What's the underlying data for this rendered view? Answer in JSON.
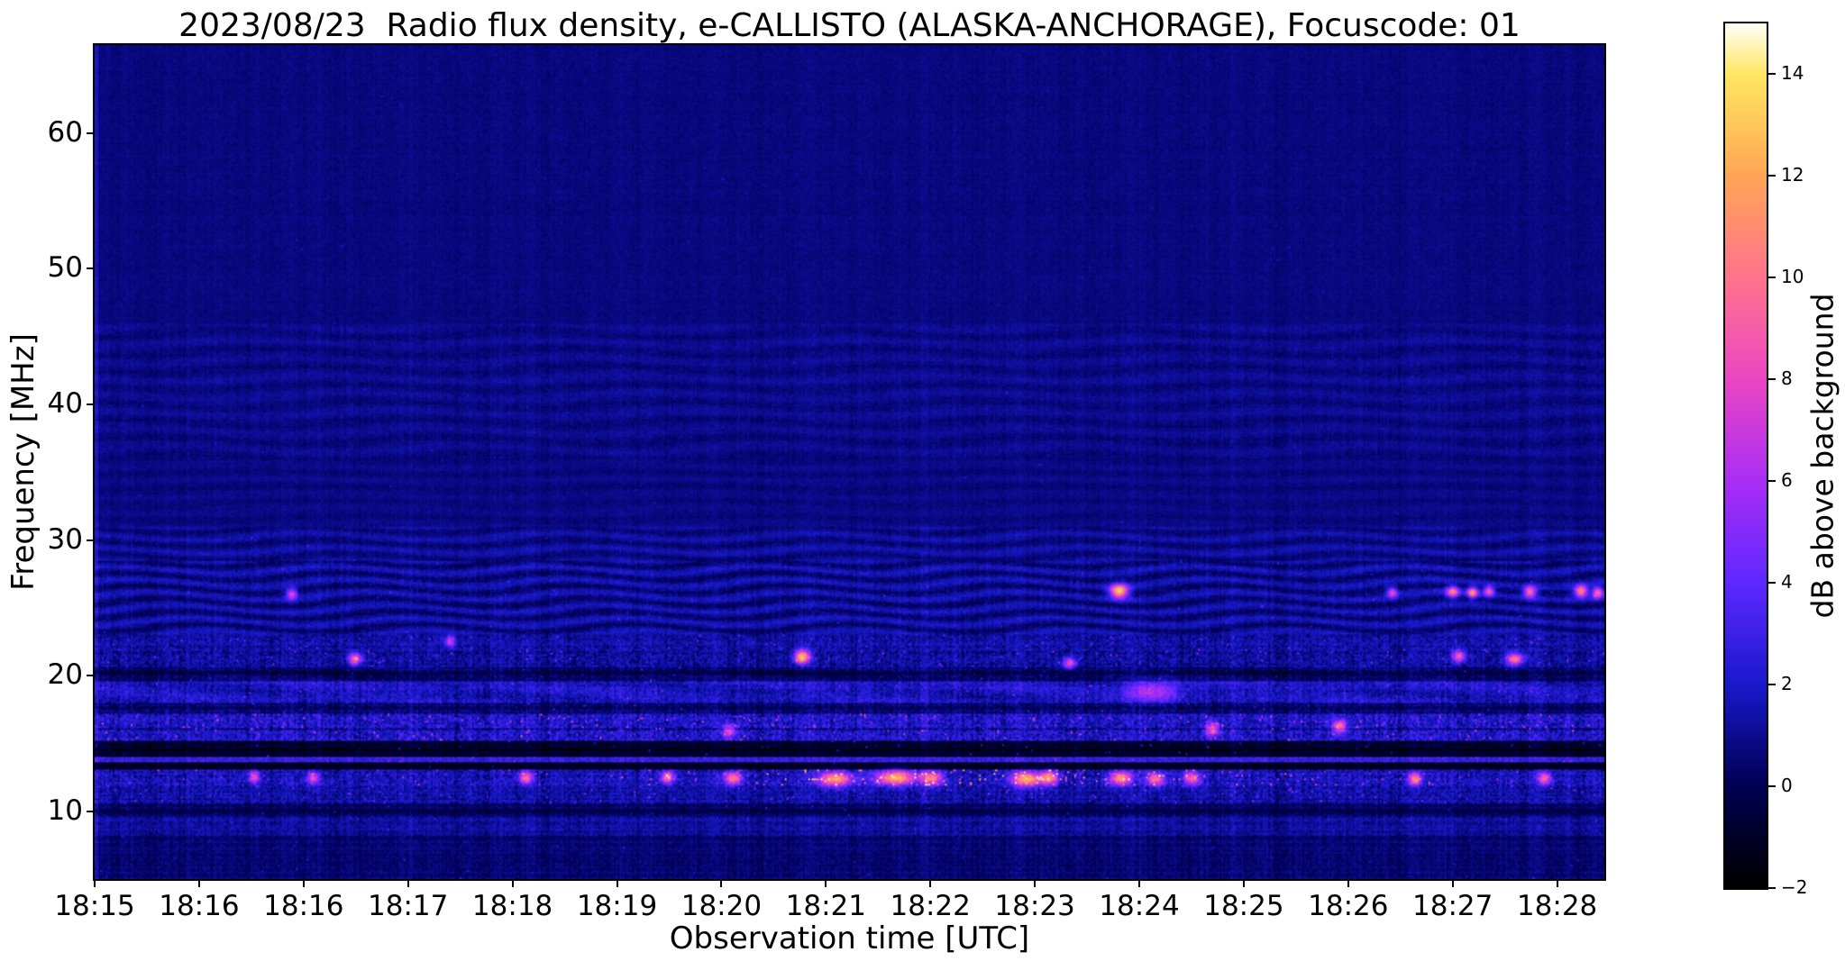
{
  "chart_data": {
    "type": "heatmap",
    "title": "2023/08/23  Radio flux density, e-CALLISTO (ALASKA-ANCHORAGE), Focuscode: 01",
    "xlabel": "Observation time [UTC]",
    "ylabel": "Frequency [MHz]",
    "x_ticks": [
      "18:15",
      "18:16",
      "18:16",
      "18:17",
      "18:18",
      "18:19",
      "18:20",
      "18:21",
      "18:22",
      "18:23",
      "18:24",
      "18:25",
      "18:26",
      "18:27",
      "18:28"
    ],
    "y_ticks": [
      10,
      20,
      30,
      40,
      50,
      60
    ],
    "y_range": [
      5.0,
      66.5
    ],
    "grid": false,
    "colorbar": {
      "label": "dB above background",
      "ticks": [
        -2,
        0,
        2,
        4,
        6,
        8,
        10,
        12,
        14
      ],
      "vmin": -2,
      "vmax": 15
    },
    "colormap": [
      {
        "t": 0.0,
        "rgb": [
          0,
          0,
          0
        ]
      },
      {
        "t": 0.06,
        "rgb": [
          0,
          0,
          40
        ]
      },
      {
        "t": 0.12,
        "rgb": [
          0,
          0,
          85
        ]
      },
      {
        "t": 0.235,
        "rgb": [
          25,
          25,
          205
        ]
      },
      {
        "t": 0.353,
        "rgb": [
          95,
          40,
          255
        ]
      },
      {
        "t": 0.47,
        "rgb": [
          170,
          45,
          245
        ]
      },
      {
        "t": 0.588,
        "rgb": [
          235,
          70,
          195
        ]
      },
      {
        "t": 0.706,
        "rgb": [
          255,
          115,
          140
        ]
      },
      {
        "t": 0.824,
        "rgb": [
          255,
          165,
          85
        ]
      },
      {
        "t": 0.94,
        "rgb": [
          255,
          230,
          95
        ]
      },
      {
        "t": 1.0,
        "rgb": [
          255,
          255,
          245
        ]
      }
    ],
    "seed": 20230823,
    "bands": [
      {
        "f0": 46,
        "f1": 66.5,
        "base": 0.7,
        "noise": 0.28,
        "stripe": 0.12,
        "rown": 0.06,
        "sp": 0.0015,
        "sv": 1.2
      },
      {
        "f0": 36,
        "f1": 46,
        "base": 0.85,
        "noise": 0.35,
        "stripe": 0.2,
        "rown": 0.1,
        "sp": 0.002,
        "sv": 1.4,
        "wave": {
          "amp": 0.3,
          "lam": 1.3,
          "warp": 1.2,
          "nt": 5
        }
      },
      {
        "f0": 31,
        "f1": 36,
        "base": 0.75,
        "noise": 0.3,
        "stripe": 0.15,
        "rown": 0.08,
        "sp": 0.002,
        "sv": 1.3,
        "wave": {
          "amp": 0.18,
          "lam": 1.1,
          "warp": 1.0,
          "nt": 4
        }
      },
      {
        "f0": 28.5,
        "f1": 31,
        "base": 1.0,
        "noise": 0.4,
        "stripe": 0.25,
        "rown": 0.1,
        "sp": 0.003,
        "sv": 2,
        "wave": {
          "amp": 0.55,
          "lam": 1.0,
          "warp": 1.6,
          "nt": 6
        }
      },
      {
        "f0": 23,
        "f1": 28.5,
        "base": 1.05,
        "noise": 0.5,
        "stripe": 0.3,
        "rown": 0.12,
        "sp": 0.004,
        "sv": 2.5,
        "wave": {
          "amp": 0.8,
          "lam": 0.95,
          "warp": 1.9,
          "nt": 7
        }
      },
      {
        "f0": 21.8,
        "f1": 23,
        "base": 1.35,
        "noise": 0.85,
        "stripe": 0.45,
        "rown": 0.2,
        "sp": 0.02,
        "sv": 3.5
      },
      {
        "f0": 20.7,
        "f1": 21.8,
        "base": 1.1,
        "noise": 0.95,
        "stripe": 0.5,
        "rown": 0.2,
        "sp": 0.018,
        "sv": 4.5
      },
      {
        "f0": 19.6,
        "f1": 20.7,
        "base": 0.3,
        "noise": 0.65,
        "stripe": 0.4,
        "rown": 0.25,
        "sp": 0.008,
        "sv": 3,
        "blotch": 0.4
      },
      {
        "f0": 18.0,
        "f1": 19.6,
        "base": 1.9,
        "noise": 0.9,
        "stripe": 0.5,
        "rown": 0.25,
        "sp": 0.012,
        "sv": 3,
        "blotch": 0.6
      },
      {
        "f0": 17.2,
        "f1": 18.0,
        "base": 0.55,
        "noise": 0.7,
        "stripe": 0.4,
        "rown": 0.2,
        "sp": 0.01,
        "sv": 3
      },
      {
        "f0": 15.2,
        "f1": 17.2,
        "base": 2.1,
        "noise": 1.2,
        "stripe": 0.65,
        "rown": 0.3,
        "sp": 0.03,
        "sv": 6
      },
      {
        "f0": 14.0,
        "f1": 15.2,
        "base": -0.8,
        "noise": 0.7,
        "stripe": 0.35,
        "rown": 0.25,
        "sp": 0.012,
        "sv": 4
      },
      {
        "f0": 13.55,
        "f1": 14.0,
        "base": 2.8,
        "noise": 0.7,
        "stripe": 0.35,
        "rown": 0.15,
        "sp": 0.01,
        "sv": 3
      },
      {
        "f0": 13.15,
        "f1": 13.55,
        "base": -1.3,
        "noise": 0.45,
        "stripe": 0.2,
        "rown": 0.12,
        "sp": 0.004,
        "sv": 3
      },
      {
        "f0": 11.9,
        "f1": 13.15,
        "base": 1.7,
        "noise": 1.1,
        "stripe": 0.55,
        "rown": 0.3,
        "sp": 0.04,
        "sv": 8,
        "midboost": 1
      },
      {
        "f0": 10.6,
        "f1": 11.9,
        "base": 1.35,
        "noise": 0.9,
        "stripe": 0.5,
        "rown": 0.3,
        "sp": 0.02,
        "sv": 4
      },
      {
        "f0": 9.7,
        "f1": 10.6,
        "base": 0.35,
        "noise": 0.5,
        "stripe": 0.3,
        "rown": 0.25,
        "sp": 0.008,
        "sv": 2.5
      },
      {
        "f0": 8.2,
        "f1": 9.7,
        "base": 1.15,
        "noise": 0.6,
        "stripe": 0.4,
        "rown": 0.3,
        "sp": 0.006,
        "sv": 2
      },
      {
        "f0": 5.0,
        "f1": 8.2,
        "base": 0.55,
        "noise": 0.45,
        "stripe": 0.3,
        "rown": 0.3,
        "sp": 0.005,
        "sv": 2
      }
    ],
    "dark_rows": [
      {
        "f": 16.05,
        "hw": 0.1,
        "d": 1.8
      },
      {
        "f": 17.6,
        "hw": 0.08,
        "d": 1.0
      },
      {
        "f": 20.2,
        "hw": 0.14,
        "d": 0.9
      },
      {
        "f": 10.05,
        "hw": 0.12,
        "d": 1.1
      },
      {
        "f": 14.55,
        "hw": 0.1,
        "d": 0.8
      }
    ],
    "events": [
      {
        "t": 0.678,
        "f": 26.3,
        "st": 0.004,
        "sf": 0.35,
        "v": 13
      },
      {
        "t": 0.13,
        "f": 26.1,
        "st": 0.0025,
        "sf": 0.28,
        "v": 7
      },
      {
        "t": 0.859,
        "f": 26.2,
        "st": 0.0025,
        "sf": 0.28,
        "v": 7
      },
      {
        "t": 0.899,
        "f": 26.25,
        "st": 0.003,
        "sf": 0.3,
        "v": 9
      },
      {
        "t": 0.912,
        "f": 26.2,
        "st": 0.0025,
        "sf": 0.28,
        "v": 10
      },
      {
        "t": 0.923,
        "f": 26.3,
        "st": 0.0025,
        "sf": 0.28,
        "v": 8
      },
      {
        "t": 0.95,
        "f": 26.25,
        "st": 0.003,
        "sf": 0.3,
        "v": 9
      },
      {
        "t": 0.984,
        "f": 26.3,
        "st": 0.003,
        "sf": 0.3,
        "v": 11
      },
      {
        "t": 0.995,
        "f": 26.2,
        "st": 0.0025,
        "sf": 0.28,
        "v": 9
      },
      {
        "t": 0.468,
        "f": 21.45,
        "st": 0.0035,
        "sf": 0.35,
        "v": 12
      },
      {
        "t": 0.172,
        "f": 21.3,
        "st": 0.003,
        "sf": 0.3,
        "v": 9
      },
      {
        "t": 0.903,
        "f": 21.5,
        "st": 0.003,
        "sf": 0.32,
        "v": 8
      },
      {
        "t": 0.94,
        "f": 21.3,
        "st": 0.004,
        "sf": 0.32,
        "v": 9
      },
      {
        "t": 0.235,
        "f": 22.6,
        "st": 0.0025,
        "sf": 0.3,
        "v": 6
      },
      {
        "t": 0.645,
        "f": 21.0,
        "st": 0.003,
        "sf": 0.3,
        "v": 7
      },
      {
        "t": 0.7,
        "f": 18.9,
        "st": 0.012,
        "sf": 0.5,
        "v": 5
      },
      {
        "t": 0.824,
        "f": 16.3,
        "st": 0.003,
        "sf": 0.35,
        "v": 8
      },
      {
        "t": 0.42,
        "f": 16.0,
        "st": 0.003,
        "sf": 0.35,
        "v": 7
      },
      {
        "t": 0.74,
        "f": 16.1,
        "st": 0.003,
        "sf": 0.35,
        "v": 8
      },
      {
        "t": 0.105,
        "f": 12.6,
        "st": 0.0025,
        "sf": 0.3,
        "v": 7
      },
      {
        "t": 0.144,
        "f": 12.5,
        "st": 0.0025,
        "sf": 0.3,
        "v": 7
      },
      {
        "t": 0.285,
        "f": 12.55,
        "st": 0.003,
        "sf": 0.32,
        "v": 8
      },
      {
        "t": 0.379,
        "f": 12.6,
        "st": 0.003,
        "sf": 0.32,
        "v": 9
      },
      {
        "t": 0.422,
        "f": 12.5,
        "st": 0.004,
        "sf": 0.35,
        "v": 9
      },
      {
        "t": 0.49,
        "f": 12.45,
        "st": 0.008,
        "sf": 0.38,
        "v": 10
      },
      {
        "t": 0.53,
        "f": 12.55,
        "st": 0.009,
        "sf": 0.38,
        "v": 11
      },
      {
        "t": 0.554,
        "f": 12.5,
        "st": 0.005,
        "sf": 0.35,
        "v": 9
      },
      {
        "t": 0.617,
        "f": 12.45,
        "st": 0.007,
        "sf": 0.38,
        "v": 11
      },
      {
        "t": 0.632,
        "f": 12.55,
        "st": 0.004,
        "sf": 0.35,
        "v": 9
      },
      {
        "t": 0.679,
        "f": 12.5,
        "st": 0.005,
        "sf": 0.35,
        "v": 10
      },
      {
        "t": 0.702,
        "f": 12.45,
        "st": 0.004,
        "sf": 0.35,
        "v": 9
      },
      {
        "t": 0.726,
        "f": 12.5,
        "st": 0.004,
        "sf": 0.35,
        "v": 8
      },
      {
        "t": 0.874,
        "f": 12.45,
        "st": 0.003,
        "sf": 0.32,
        "v": 9
      },
      {
        "t": 0.96,
        "f": 12.5,
        "st": 0.003,
        "sf": 0.32,
        "v": 8
      }
    ]
  }
}
